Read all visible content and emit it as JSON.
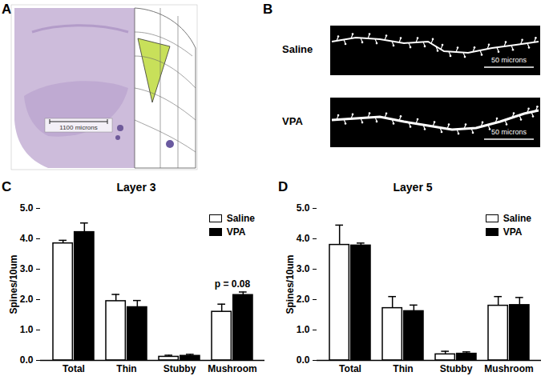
{
  "figure": {
    "panels": [
      {
        "label": "A",
        "scale_bar": "1100 microns"
      },
      {
        "label": "B",
        "images": [
          {
            "name": "Saline",
            "scale_bar": "50 microns"
          },
          {
            "name": "VPA",
            "scale_bar": "50 microns"
          }
        ]
      }
    ]
  },
  "chart_data": [
    {
      "type": "bar",
      "label": "C",
      "title": "Layer 3",
      "ylabel": "Spines/10um",
      "categories": [
        "Total",
        "Thin",
        "Stubby",
        "Mushroom"
      ],
      "series": [
        {
          "name": "Saline",
          "color": "#ffffff",
          "values": [
            3.85,
            1.95,
            0.12,
            1.6
          ],
          "errors": [
            0.1,
            0.22,
            0.05,
            0.25
          ]
        },
        {
          "name": "VPA",
          "color": "#000000",
          "values": [
            4.22,
            1.75,
            0.15,
            2.15
          ],
          "errors": [
            0.3,
            0.22,
            0.05,
            0.1
          ]
        }
      ],
      "annotations": [
        {
          "category": "Mushroom",
          "text": "p = 0.08"
        }
      ],
      "ylim": [
        0,
        5
      ],
      "yticks": [
        0,
        1,
        2,
        3,
        4,
        5
      ],
      "grid": false,
      "legend": "upper right"
    },
    {
      "type": "bar",
      "label": "D",
      "title": "Layer 5",
      "ylabel": "Spines/10um",
      "categories": [
        "Total",
        "Thin",
        "Stubby",
        "Mushroom"
      ],
      "series": [
        {
          "name": "Saline",
          "color": "#ffffff",
          "values": [
            3.8,
            1.72,
            0.2,
            1.8
          ],
          "errors": [
            0.65,
            0.38,
            0.1,
            0.3
          ]
        },
        {
          "name": "VPA",
          "color": "#000000",
          "values": [
            3.78,
            1.62,
            0.22,
            1.82
          ],
          "errors": [
            0.08,
            0.2,
            0.06,
            0.25
          ]
        }
      ],
      "annotations": [],
      "ylim": [
        0,
        5
      ],
      "yticks": [
        0,
        1,
        2,
        3,
        4,
        5
      ],
      "grid": false,
      "legend": "upper right"
    }
  ]
}
